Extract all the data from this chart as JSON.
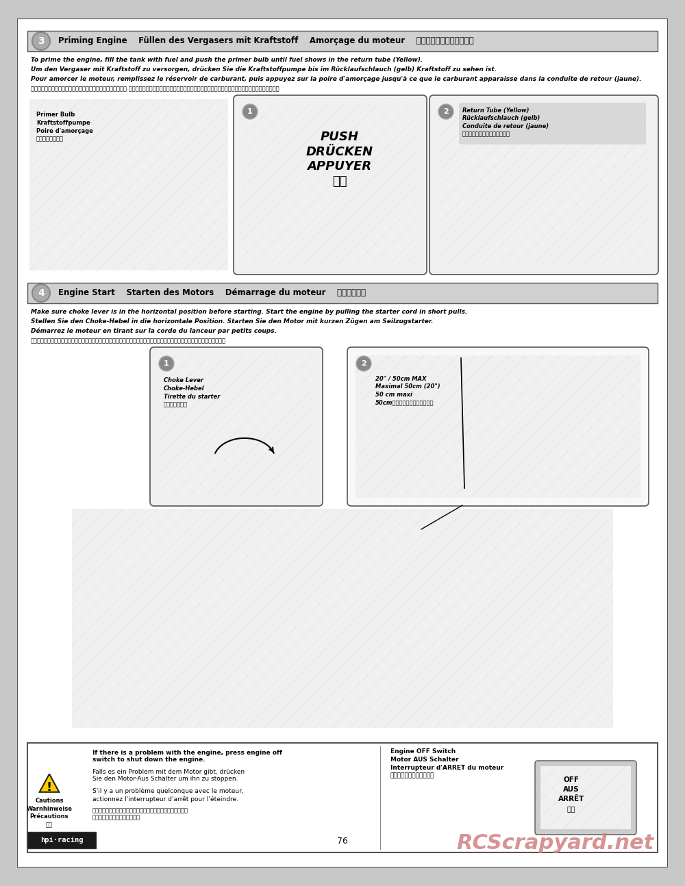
{
  "page_bg": "#c8c8c8",
  "content_bg": "#ffffff",
  "header3_bg": "#d8d8d8",
  "header4_bg": "#d8d8d8",
  "border_color": "#444444",
  "text_color": "#000000",
  "watermark_color": "#d08080",
  "page_number": "76",
  "section3_title": "Priming Engine    Füllen des Vergasers mit Kraftstoff    Amorçage du moteur    燃料をキャブレターに送る",
  "section3_body_en": "To prime the engine, fill the tank with fuel and push the primer bulb until fuel shows in the return tube (Yellow).",
  "section3_body_de": "Um den Vergaser mit Kraftstoff zu versorgen, drücken Sie die Kraftstoffpumpe bis im Rücklaufschlauch (gelb) Kraftstoff zu sehen ist.",
  "section3_body_fr": "Pour amorcer le moteur, remplissez le réservoir de carburant, puis appuyez sur la poire d'amorçage jusqu'à ce que le carburant apparaisse dans la conduite de retour (jaune).",
  "section3_body_jp": "エンジン始動準備のため、キャブレターのプライマーバルブを リターンチューブ（イエロー）に燃料がでてくるまで数回押して燃料をキャブレターに送ります。",
  "section3_label1": "Primer Bulb\nKraftstoffpumpe\nPoire d'amorçage\nプライマーバルブ",
  "section3_sub1": "PUSH\nDRÜCKEN\nAPPUYER\n押す",
  "section3_sub2": "Return Tube (Yellow)\nRücklaufschlauch (gelb)\nConduite de retour (jaune)\nリターンチューブ（イエロー）",
  "section4_title": "Engine Start    Starten des Motors    Démarrage du moteur    エンジン始動",
  "section4_body_en": "Make sure choke lever is in the horizontal position before starting. Start the engine by pulling the starter cord in short pulls.",
  "section4_body_de": "Stellen Sie den Choke-Hebel in die horizontale Position. Starten Sie den Motor mit kurzen Zügen am Seilzugstarter.",
  "section4_body_fr": "Démarrez le moteur en tirant sur la corde du lanceur par petits coups.",
  "section4_body_jp": "エンジン始動前にチョークレバーの位置が水平になっているか確認し、プルスターターを短く数回引きエンジンを始動します。",
  "section4_label1": "Choke Lever\nChoke-Hebel\nTirette du starter\nチョークレバー",
  "section4_label2": "20\" / 50cm MAX\nMaximal 50cm (20\")\n50 cm maxi\n50cm以上引かないでください。",
  "caution_title": "Cautions\nWarnhinweise\nPrécautions\n警告",
  "caution_body_en": "If there is a problem with the engine, press engine off\nswitch to shut down the engine.",
  "caution_body_de": "Falls es ein Problem mit dem Motor gibt, drücken\nSie den Motor-Aus Schalter um ihn zu stoppen.",
  "caution_body_fr": "S'il y a un problème quelconque avec le moteur,\nactionnez l'interrupteur d'arrêt pour l'éteindre.",
  "caution_body_jp": "エンジンに異常を感じたらエンジンストップスイッチを押して\nエンジンを停止してください。",
  "engine_off_title": "Engine OFF Switch\nMotor AUS Schalter\nInterrupteur d'ARRET du moteur\nエンジンストップスイッチ",
  "engine_off_labels": "OFF\nAUS\nARRÊT\nオフ",
  "watermark": "RCScrapyard.net",
  "hpi_logo": "hpi·racing"
}
